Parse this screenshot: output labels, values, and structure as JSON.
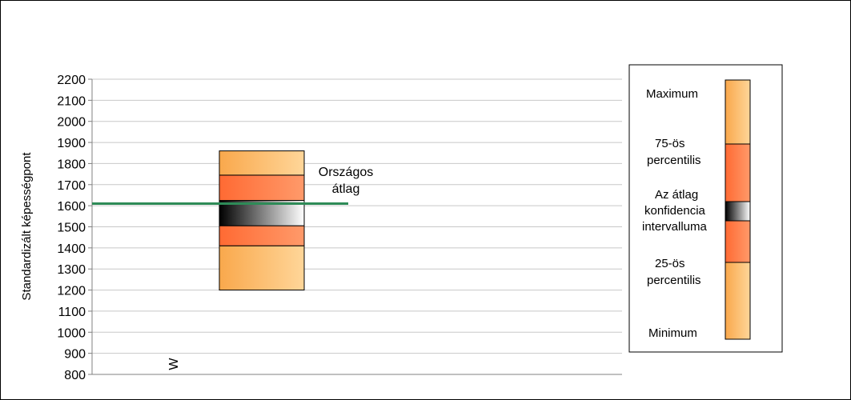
{
  "chart_data": {
    "type": "box-percentile",
    "ylabel": "Standardizált képességpont",
    "ylim": [
      800,
      2200
    ],
    "ytick_step": 100,
    "grid": true,
    "categories": [
      "W"
    ],
    "boxes": [
      {
        "category": "W",
        "minimum": 1200,
        "p25": 1410,
        "ci_low": 1505,
        "ci_high": 1625,
        "p75": 1745,
        "maximum": 1860
      }
    ],
    "reference_line": {
      "label_line1": "Országos",
      "label_line2": "átlag",
      "value": 1610,
      "color": "#2e8b57"
    },
    "colors": {
      "outer_light": "#ffd699",
      "outer_dark": "#f9a84c",
      "inner_light": "#ff9a6a",
      "inner_dark": "#ff6a33",
      "ci_dark": "#000000",
      "ci_light": "#ffffff"
    },
    "legend": {
      "placement": "right",
      "maximum": "Maximum",
      "p75_line1": "75-ös",
      "p75_line2": "percentilis",
      "ci_line1": "Az átlag",
      "ci_line2": "konfidencia",
      "ci_line3": "intervalluma",
      "p25_line1": "25-ös",
      "p25_line2": "percentilis",
      "minimum": "Minimum"
    }
  }
}
